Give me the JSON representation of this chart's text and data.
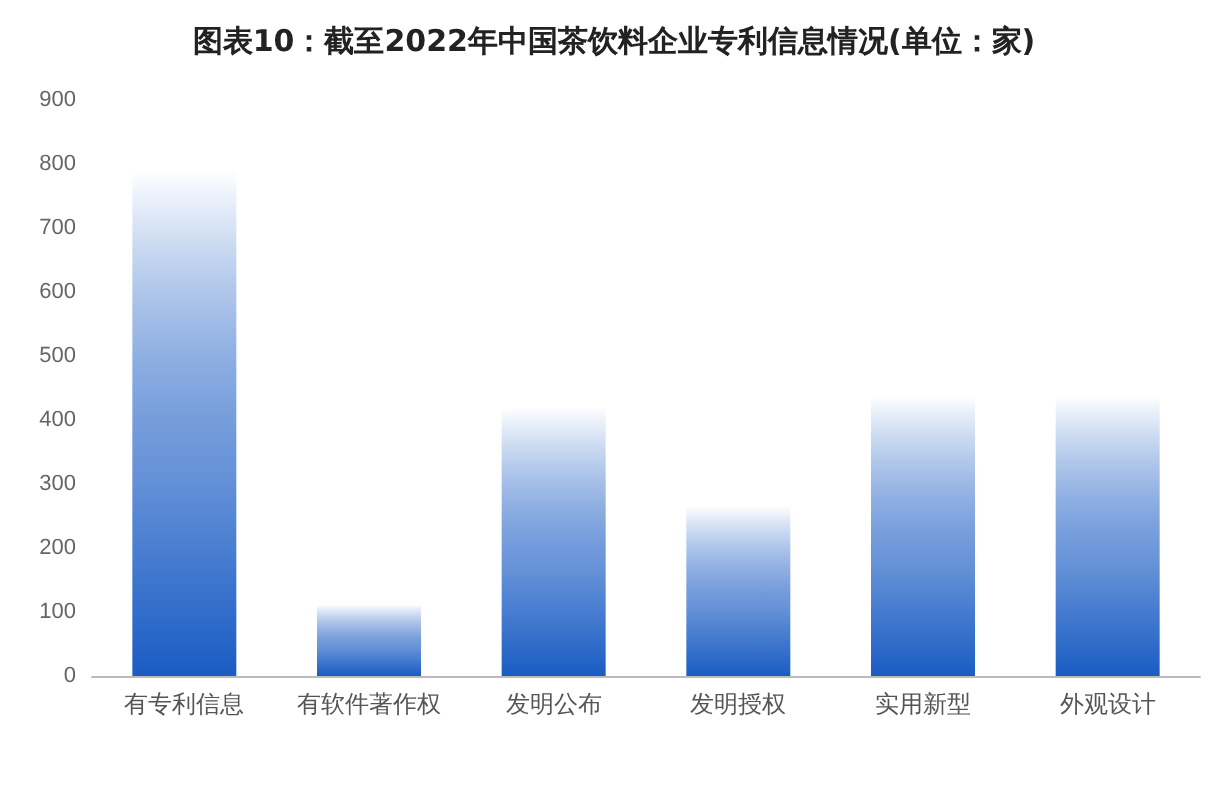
{
  "chart_data": {
    "type": "bar",
    "title": "图表10：截至2022年中国茶饮料企业专利信息情况(单位：家)",
    "categories": [
      "有专利信息",
      "有软件著作权",
      "发明公布",
      "发明授权",
      "实用新型",
      "外观设计"
    ],
    "values": [
      790,
      112,
      420,
      266,
      438,
      438
    ],
    "color": "#1a5cc4",
    "ylim": [
      0,
      900
    ],
    "yticks": [
      0,
      100,
      200,
      300,
      400,
      500,
      600,
      700,
      800,
      900
    ],
    "grid": false
  }
}
